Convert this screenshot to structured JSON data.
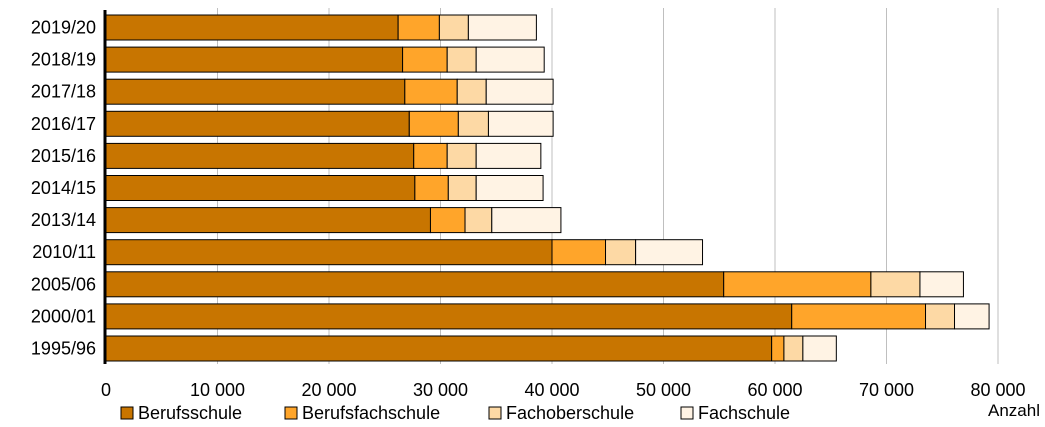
{
  "chart_data": {
    "type": "bar",
    "orientation": "horizontal",
    "stacked": true,
    "categories": [
      "2019/20",
      "2018/19",
      "2017/18",
      "2016/17",
      "2015/16",
      "2014/15",
      "2013/14",
      "2010/11",
      "2005/06",
      "2000/01",
      "1995/96"
    ],
    "series": [
      {
        "name": "Berufsschule",
        "color": "#C87500",
        "values": [
          26200,
          26600,
          26800,
          27200,
          27600,
          27700,
          29100,
          40000,
          55400,
          61500,
          59700
        ]
      },
      {
        "name": "Berufsfachschule",
        "color": "#FFA52A",
        "values": [
          3700,
          4000,
          4700,
          4400,
          3000,
          3000,
          3100,
          4800,
          13200,
          12000,
          1100
        ]
      },
      {
        "name": "Fachoberschule",
        "color": "#FDD9A5",
        "values": [
          2600,
          2600,
          2600,
          2700,
          2600,
          2500,
          2400,
          2700,
          4400,
          2600,
          1700
        ]
      },
      {
        "name": "Fachschule",
        "color": "#FFF3E4",
        "values": [
          6100,
          6100,
          6000,
          5800,
          5800,
          6000,
          6200,
          6000,
          3900,
          3100,
          3000
        ]
      }
    ],
    "xlim": [
      0,
      80000
    ],
    "xticks": [
      0,
      10000,
      20000,
      30000,
      40000,
      50000,
      60000,
      70000,
      80000
    ],
    "xtick_labels": [
      "0",
      "10 000",
      "20 000",
      "30 000",
      "40 000",
      "50 000",
      "60 000",
      "70 000",
      "80 000"
    ],
    "xlabel": "Anzahl",
    "grid": "vertical",
    "legend_position": "bottom"
  }
}
